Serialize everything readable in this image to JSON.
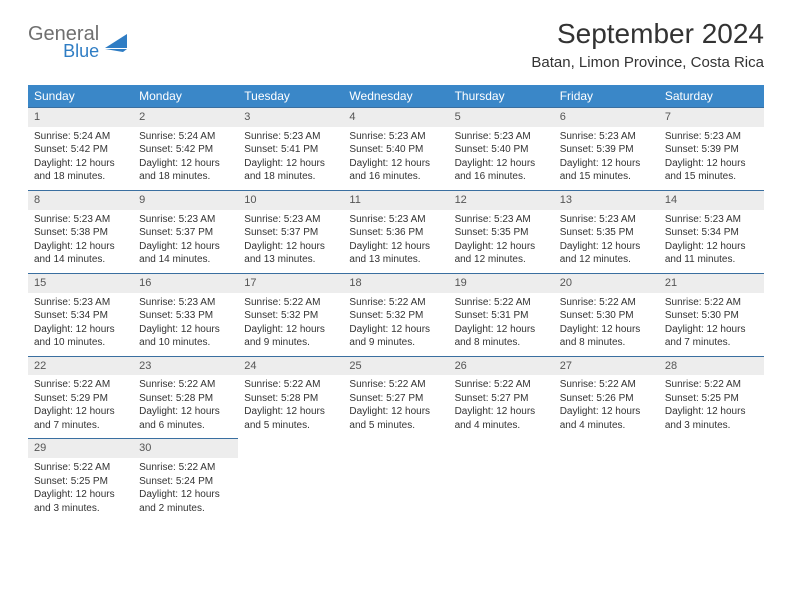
{
  "logo": {
    "general": "General",
    "blue": "Blue"
  },
  "header": {
    "title": "September 2024",
    "location": "Batan, Limon Province, Costa Rica"
  },
  "styling": {
    "header_bg": "#3a87c8",
    "header_text": "#ffffff",
    "daynum_bg": "#ededed",
    "daynum_border": "#3a6fa0",
    "body_bg": "#ffffff",
    "body_text": "#333333",
    "logo_gray": "#6f6f6f",
    "logo_blue": "#2f7dc4",
    "title_fontsize": 28,
    "location_fontsize": 15,
    "th_fontsize": 12,
    "cell_fontsize": 10
  },
  "weekdays": [
    "Sunday",
    "Monday",
    "Tuesday",
    "Wednesday",
    "Thursday",
    "Friday",
    "Saturday"
  ],
  "weeks": [
    [
      {
        "n": "1",
        "sr": "Sunrise: 5:24 AM",
        "ss": "Sunset: 5:42 PM",
        "d1": "Daylight: 12 hours",
        "d2": "and 18 minutes."
      },
      {
        "n": "2",
        "sr": "Sunrise: 5:24 AM",
        "ss": "Sunset: 5:42 PM",
        "d1": "Daylight: 12 hours",
        "d2": "and 18 minutes."
      },
      {
        "n": "3",
        "sr": "Sunrise: 5:23 AM",
        "ss": "Sunset: 5:41 PM",
        "d1": "Daylight: 12 hours",
        "d2": "and 18 minutes."
      },
      {
        "n": "4",
        "sr": "Sunrise: 5:23 AM",
        "ss": "Sunset: 5:40 PM",
        "d1": "Daylight: 12 hours",
        "d2": "and 16 minutes."
      },
      {
        "n": "5",
        "sr": "Sunrise: 5:23 AM",
        "ss": "Sunset: 5:40 PM",
        "d1": "Daylight: 12 hours",
        "d2": "and 16 minutes."
      },
      {
        "n": "6",
        "sr": "Sunrise: 5:23 AM",
        "ss": "Sunset: 5:39 PM",
        "d1": "Daylight: 12 hours",
        "d2": "and 15 minutes."
      },
      {
        "n": "7",
        "sr": "Sunrise: 5:23 AM",
        "ss": "Sunset: 5:39 PM",
        "d1": "Daylight: 12 hours",
        "d2": "and 15 minutes."
      }
    ],
    [
      {
        "n": "8",
        "sr": "Sunrise: 5:23 AM",
        "ss": "Sunset: 5:38 PM",
        "d1": "Daylight: 12 hours",
        "d2": "and 14 minutes."
      },
      {
        "n": "9",
        "sr": "Sunrise: 5:23 AM",
        "ss": "Sunset: 5:37 PM",
        "d1": "Daylight: 12 hours",
        "d2": "and 14 minutes."
      },
      {
        "n": "10",
        "sr": "Sunrise: 5:23 AM",
        "ss": "Sunset: 5:37 PM",
        "d1": "Daylight: 12 hours",
        "d2": "and 13 minutes."
      },
      {
        "n": "11",
        "sr": "Sunrise: 5:23 AM",
        "ss": "Sunset: 5:36 PM",
        "d1": "Daylight: 12 hours",
        "d2": "and 13 minutes."
      },
      {
        "n": "12",
        "sr": "Sunrise: 5:23 AM",
        "ss": "Sunset: 5:35 PM",
        "d1": "Daylight: 12 hours",
        "d2": "and 12 minutes."
      },
      {
        "n": "13",
        "sr": "Sunrise: 5:23 AM",
        "ss": "Sunset: 5:35 PM",
        "d1": "Daylight: 12 hours",
        "d2": "and 12 minutes."
      },
      {
        "n": "14",
        "sr": "Sunrise: 5:23 AM",
        "ss": "Sunset: 5:34 PM",
        "d1": "Daylight: 12 hours",
        "d2": "and 11 minutes."
      }
    ],
    [
      {
        "n": "15",
        "sr": "Sunrise: 5:23 AM",
        "ss": "Sunset: 5:34 PM",
        "d1": "Daylight: 12 hours",
        "d2": "and 10 minutes."
      },
      {
        "n": "16",
        "sr": "Sunrise: 5:23 AM",
        "ss": "Sunset: 5:33 PM",
        "d1": "Daylight: 12 hours",
        "d2": "and 10 minutes."
      },
      {
        "n": "17",
        "sr": "Sunrise: 5:22 AM",
        "ss": "Sunset: 5:32 PM",
        "d1": "Daylight: 12 hours",
        "d2": "and 9 minutes."
      },
      {
        "n": "18",
        "sr": "Sunrise: 5:22 AM",
        "ss": "Sunset: 5:32 PM",
        "d1": "Daylight: 12 hours",
        "d2": "and 9 minutes."
      },
      {
        "n": "19",
        "sr": "Sunrise: 5:22 AM",
        "ss": "Sunset: 5:31 PM",
        "d1": "Daylight: 12 hours",
        "d2": "and 8 minutes."
      },
      {
        "n": "20",
        "sr": "Sunrise: 5:22 AM",
        "ss": "Sunset: 5:30 PM",
        "d1": "Daylight: 12 hours",
        "d2": "and 8 minutes."
      },
      {
        "n": "21",
        "sr": "Sunrise: 5:22 AM",
        "ss": "Sunset: 5:30 PM",
        "d1": "Daylight: 12 hours",
        "d2": "and 7 minutes."
      }
    ],
    [
      {
        "n": "22",
        "sr": "Sunrise: 5:22 AM",
        "ss": "Sunset: 5:29 PM",
        "d1": "Daylight: 12 hours",
        "d2": "and 7 minutes."
      },
      {
        "n": "23",
        "sr": "Sunrise: 5:22 AM",
        "ss": "Sunset: 5:28 PM",
        "d1": "Daylight: 12 hours",
        "d2": "and 6 minutes."
      },
      {
        "n": "24",
        "sr": "Sunrise: 5:22 AM",
        "ss": "Sunset: 5:28 PM",
        "d1": "Daylight: 12 hours",
        "d2": "and 5 minutes."
      },
      {
        "n": "25",
        "sr": "Sunrise: 5:22 AM",
        "ss": "Sunset: 5:27 PM",
        "d1": "Daylight: 12 hours",
        "d2": "and 5 minutes."
      },
      {
        "n": "26",
        "sr": "Sunrise: 5:22 AM",
        "ss": "Sunset: 5:27 PM",
        "d1": "Daylight: 12 hours",
        "d2": "and 4 minutes."
      },
      {
        "n": "27",
        "sr": "Sunrise: 5:22 AM",
        "ss": "Sunset: 5:26 PM",
        "d1": "Daylight: 12 hours",
        "d2": "and 4 minutes."
      },
      {
        "n": "28",
        "sr": "Sunrise: 5:22 AM",
        "ss": "Sunset: 5:25 PM",
        "d1": "Daylight: 12 hours",
        "d2": "and 3 minutes."
      }
    ],
    [
      {
        "n": "29",
        "sr": "Sunrise: 5:22 AM",
        "ss": "Sunset: 5:25 PM",
        "d1": "Daylight: 12 hours",
        "d2": "and 3 minutes."
      },
      {
        "n": "30",
        "sr": "Sunrise: 5:22 AM",
        "ss": "Sunset: 5:24 PM",
        "d1": "Daylight: 12 hours",
        "d2": "and 2 minutes."
      },
      {
        "empty": true
      },
      {
        "empty": true
      },
      {
        "empty": true
      },
      {
        "empty": true
      },
      {
        "empty": true
      }
    ]
  ]
}
